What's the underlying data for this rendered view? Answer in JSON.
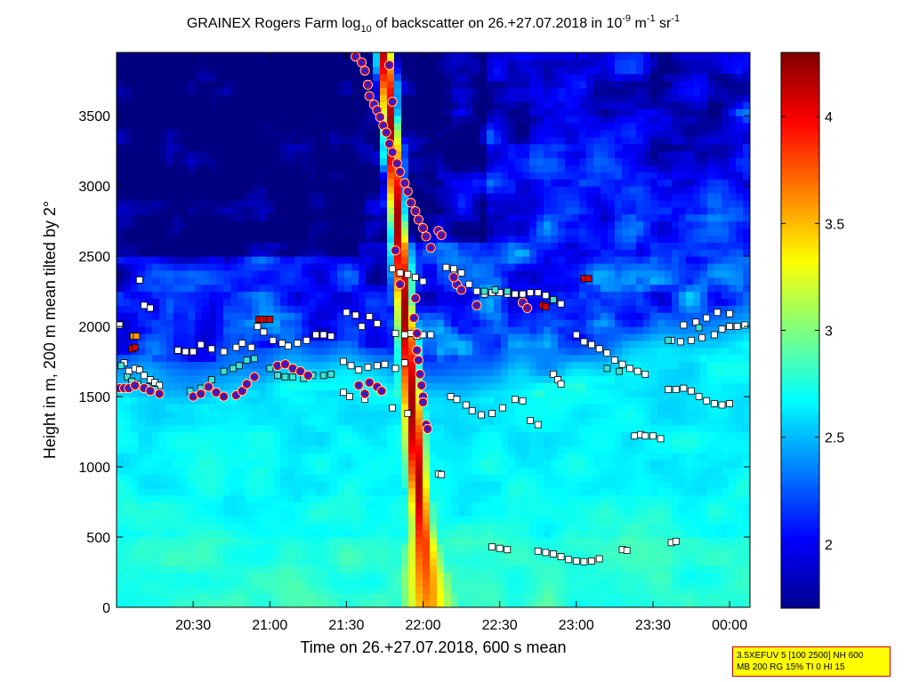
{
  "chart_data": {
    "type": "heatmap",
    "title": {
      "pre": "GRAINEX Rogers Farm log",
      "sub": "10",
      "mid": " of backscatter on 26.+27.07.2018 in 10",
      "sup1": "-9",
      "mid2": " m",
      "sup2": "-1",
      "mid3": " sr",
      "sup3": "-1"
    },
    "xlabel": "Time on 26.+27.07.2018, 600 s mean",
    "ylabel": "Height in m, 200 m mean tilted by 2°",
    "xlim_hours": [
      20.0,
      24.133
    ],
    "ylim": [
      0,
      3950
    ],
    "x_ticks": [
      {
        "h": 20.5,
        "label": "20:30"
      },
      {
        "h": 21.0,
        "label": "21:00"
      },
      {
        "h": 21.5,
        "label": "21:30"
      },
      {
        "h": 22.0,
        "label": "22:00"
      },
      {
        "h": 22.5,
        "label": "22:30"
      },
      {
        "h": 23.0,
        "label": "23:00"
      },
      {
        "h": 23.5,
        "label": "23:30"
      },
      {
        "h": 24.0,
        "label": "00:00"
      }
    ],
    "y_ticks": [
      0,
      500,
      1000,
      1500,
      2000,
      2500,
      3000,
      3500
    ],
    "colorbar": {
      "range": [
        1.7,
        4.3
      ],
      "ticks": [
        2,
        2.5,
        3,
        3.5,
        4
      ],
      "colormap": "jet"
    },
    "field": {
      "near_surface_log10": 2.75,
      "boundary_layer_top_m": [
        {
          "h": 20.0,
          "z": 1560
        },
        {
          "h": 20.5,
          "z": 1480
        },
        {
          "h": 21.0,
          "z": 1620
        },
        {
          "h": 21.5,
          "z": 1650
        },
        {
          "h": 22.0,
          "z": 1500
        },
        {
          "h": 22.5,
          "z": 1560
        },
        {
          "h": 23.0,
          "z": 1640
        },
        {
          "h": 23.5,
          "z": 1760
        },
        {
          "h": 24.0,
          "z": 1900
        },
        {
          "h": 24.133,
          "z": 1950
        }
      ],
      "plume": {
        "center_h_at_base": 22.03,
        "center_h_at_top": 21.75,
        "peak_log10": 4.2
      }
    },
    "series": [
      {
        "marker": "white-square",
        "points": [
          [
            20.02,
            2010
          ],
          [
            20.05,
            1740
          ],
          [
            20.08,
            1680
          ],
          [
            20.12,
            1700
          ],
          [
            20.15,
            1690
          ],
          [
            20.18,
            1650
          ],
          [
            20.22,
            1620
          ],
          [
            20.25,
            1600
          ],
          [
            20.28,
            1580
          ],
          [
            20.18,
            2150
          ],
          [
            20.22,
            2130
          ],
          [
            20.15,
            2330
          ],
          [
            20.4,
            1830
          ],
          [
            20.45,
            1820
          ],
          [
            20.5,
            1820
          ],
          [
            20.55,
            1870
          ],
          [
            20.62,
            1840
          ],
          [
            20.7,
            1820
          ],
          [
            20.78,
            1850
          ],
          [
            20.82,
            1880
          ],
          [
            20.88,
            1850
          ],
          [
            20.92,
            2000
          ],
          [
            20.96,
            1960
          ],
          [
            21.02,
            1900
          ],
          [
            21.08,
            1880
          ],
          [
            21.12,
            1860
          ],
          [
            21.18,
            1880
          ],
          [
            21.24,
            1900
          ],
          [
            21.3,
            1940
          ],
          [
            21.35,
            1940
          ],
          [
            21.4,
            1930
          ],
          [
            21.5,
            2100
          ],
          [
            21.56,
            2080
          ],
          [
            21.6,
            2000
          ],
          [
            21.65,
            2070
          ],
          [
            21.7,
            2020
          ],
          [
            21.48,
            1750
          ],
          [
            21.53,
            1720
          ],
          [
            21.58,
            1690
          ],
          [
            21.64,
            1710
          ],
          [
            21.7,
            1720
          ],
          [
            21.75,
            1730
          ],
          [
            21.82,
            1700
          ],
          [
            21.88,
            1740
          ],
          [
            21.48,
            1530
          ],
          [
            21.52,
            1500
          ],
          [
            21.62,
            1480
          ],
          [
            21.8,
            1420
          ],
          [
            21.9,
            1380
          ],
          [
            21.8,
            2410
          ],
          [
            21.85,
            2380
          ],
          [
            21.9,
            2370
          ],
          [
            21.95,
            2350
          ],
          [
            22.0,
            2320
          ],
          [
            21.82,
            1950
          ],
          [
            21.88,
            1940
          ],
          [
            21.92,
            1950
          ],
          [
            21.96,
            1930
          ],
          [
            22.0,
            1940
          ],
          [
            22.05,
            1940
          ],
          [
            22.15,
            2420
          ],
          [
            22.2,
            2410
          ],
          [
            22.25,
            2380
          ],
          [
            22.3,
            2300
          ],
          [
            22.35,
            2250
          ],
          [
            22.4,
            2230
          ],
          [
            22.45,
            2240
          ],
          [
            22.5,
            2240
          ],
          [
            22.55,
            2230
          ],
          [
            22.6,
            2230
          ],
          [
            22.65,
            2230
          ],
          [
            22.7,
            2240
          ],
          [
            22.75,
            2240
          ],
          [
            22.8,
            2220
          ],
          [
            22.85,
            2190
          ],
          [
            22.9,
            2160
          ],
          [
            22.1,
            950
          ],
          [
            22.12,
            945
          ],
          [
            22.18,
            1500
          ],
          [
            22.22,
            1480
          ],
          [
            22.28,
            1440
          ],
          [
            22.32,
            1400
          ],
          [
            22.38,
            1370
          ],
          [
            22.45,
            1380
          ],
          [
            22.52,
            1420
          ],
          [
            22.6,
            1480
          ],
          [
            22.65,
            1470
          ],
          [
            22.7,
            1330
          ],
          [
            22.75,
            1300
          ],
          [
            22.85,
            1660
          ],
          [
            22.88,
            1620
          ],
          [
            22.9,
            1590
          ],
          [
            23.0,
            1940
          ],
          [
            23.05,
            1890
          ],
          [
            23.1,
            1870
          ],
          [
            23.15,
            1840
          ],
          [
            23.2,
            1810
          ],
          [
            23.25,
            1760
          ],
          [
            23.3,
            1730
          ],
          [
            23.35,
            1700
          ],
          [
            23.4,
            1680
          ],
          [
            23.45,
            1660
          ],
          [
            23.38,
            1220
          ],
          [
            23.42,
            1230
          ],
          [
            23.45,
            1220
          ],
          [
            23.5,
            1220
          ],
          [
            23.55,
            1200
          ],
          [
            23.6,
            1550
          ],
          [
            23.65,
            1550
          ],
          [
            23.7,
            1560
          ],
          [
            23.75,
            1540
          ],
          [
            23.8,
            1500
          ],
          [
            23.85,
            1470
          ],
          [
            23.9,
            1450
          ],
          [
            23.95,
            1440
          ],
          [
            24.0,
            1450
          ],
          [
            23.62,
            1900
          ],
          [
            23.68,
            1890
          ],
          [
            23.75,
            1900
          ],
          [
            23.82,
            1920
          ],
          [
            23.9,
            1940
          ],
          [
            23.95,
            1980
          ],
          [
            24.0,
            2000
          ],
          [
            24.05,
            2000
          ],
          [
            24.1,
            2010
          ],
          [
            22.45,
            430
          ],
          [
            22.5,
            420
          ],
          [
            22.55,
            410
          ],
          [
            22.75,
            400
          ],
          [
            22.8,
            390
          ],
          [
            22.85,
            380
          ],
          [
            22.9,
            360
          ],
          [
            22.95,
            340
          ],
          [
            23.0,
            330
          ],
          [
            23.05,
            325
          ],
          [
            23.1,
            330
          ],
          [
            23.15,
            345
          ],
          [
            23.3,
            410
          ],
          [
            23.33,
            405
          ],
          [
            23.62,
            460
          ],
          [
            23.65,
            470
          ],
          [
            23.7,
            2010
          ],
          [
            23.78,
            2030
          ],
          [
            23.85,
            2060
          ],
          [
            23.92,
            2100
          ],
          [
            24.0,
            2090
          ]
        ]
      },
      {
        "marker": "cyan-square",
        "points": [
          [
            20.03,
            1720
          ],
          [
            20.07,
            1640
          ],
          [
            20.1,
            1610
          ],
          [
            20.14,
            1590
          ],
          [
            20.2,
            1570
          ],
          [
            20.25,
            1550
          ],
          [
            20.48,
            1540
          ],
          [
            20.55,
            1560
          ],
          [
            20.62,
            1620
          ],
          [
            20.7,
            1680
          ],
          [
            20.76,
            1700
          ],
          [
            20.8,
            1720
          ],
          [
            20.85,
            1760
          ],
          [
            20.9,
            1770
          ],
          [
            21.0,
            1700
          ],
          [
            21.05,
            1650
          ],
          [
            21.1,
            1640
          ],
          [
            21.15,
            1640
          ],
          [
            21.22,
            1630
          ],
          [
            21.28,
            1650
          ],
          [
            21.35,
            1650
          ],
          [
            21.4,
            1660
          ],
          [
            22.4,
            2250
          ],
          [
            22.47,
            2260
          ],
          [
            22.55,
            2250
          ],
          [
            22.85,
            2190
          ],
          [
            23.2,
            1700
          ],
          [
            23.28,
            1680
          ],
          [
            23.6,
            1900
          ],
          [
            23.8,
            1990
          ]
        ]
      },
      {
        "marker": "red-square",
        "points": [
          [
            20.1,
            1840
          ],
          [
            20.12,
            1850
          ],
          [
            20.93,
            2050
          ],
          [
            20.95,
            2050
          ],
          [
            20.98,
            2050
          ],
          [
            21.0,
            2050
          ],
          [
            22.78,
            2150
          ],
          [
            22.8,
            2140
          ],
          [
            23.05,
            2340
          ],
          [
            23.08,
            2340
          ]
        ]
      },
      {
        "marker": "orange-square",
        "points": [
          [
            20.11,
            1930
          ],
          [
            20.13,
            1930
          ]
        ]
      },
      {
        "marker": "blue-red-circle",
        "points": [
          [
            20.02,
            1560
          ],
          [
            20.05,
            1560
          ],
          [
            20.08,
            1560
          ],
          [
            20.12,
            1580
          ],
          [
            20.18,
            1560
          ],
          [
            20.22,
            1540
          ],
          [
            20.28,
            1520
          ],
          [
            20.5,
            1500
          ],
          [
            20.55,
            1520
          ],
          [
            20.6,
            1570
          ],
          [
            20.65,
            1530
          ],
          [
            20.7,
            1500
          ],
          [
            20.78,
            1510
          ],
          [
            20.82,
            1540
          ],
          [
            20.85,
            1590
          ],
          [
            20.9,
            1640
          ],
          [
            21.05,
            1720
          ],
          [
            21.1,
            1730
          ],
          [
            21.15,
            1700
          ],
          [
            21.2,
            1680
          ],
          [
            21.25,
            1650
          ],
          [
            21.58,
            1580
          ],
          [
            21.62,
            1520
          ],
          [
            21.65,
            1600
          ],
          [
            21.7,
            1570
          ],
          [
            21.73,
            1540
          ],
          [
            21.56,
            3920
          ],
          [
            21.6,
            3880
          ],
          [
            21.62,
            3820
          ],
          [
            21.64,
            3720
          ],
          [
            21.65,
            3640
          ],
          [
            21.68,
            3580
          ],
          [
            21.7,
            3540
          ],
          [
            21.72,
            3490
          ],
          [
            21.74,
            3430
          ],
          [
            21.76,
            3380
          ],
          [
            21.78,
            3300
          ],
          [
            21.8,
            3240
          ],
          [
            21.83,
            3160
          ],
          [
            21.85,
            3100
          ],
          [
            21.88,
            3020
          ],
          [
            21.9,
            2960
          ],
          [
            21.92,
            2880
          ],
          [
            21.95,
            2820
          ],
          [
            21.97,
            2760
          ],
          [
            22.0,
            2700
          ],
          [
            22.02,
            2640
          ],
          [
            22.05,
            2560
          ],
          [
            21.8,
            3600
          ],
          [
            21.78,
            3860
          ],
          [
            21.82,
            2540
          ],
          [
            21.85,
            2300
          ],
          [
            21.95,
            2200
          ],
          [
            21.94,
            2060
          ],
          [
            21.96,
            1950
          ],
          [
            21.96,
            1830
          ],
          [
            21.97,
            1760
          ],
          [
            21.98,
            1660
          ],
          [
            21.99,
            1580
          ],
          [
            22.0,
            1500
          ],
          [
            22.0,
            1460
          ],
          [
            22.02,
            1300
          ],
          [
            22.03,
            1270
          ],
          [
            22.1,
            2680
          ],
          [
            22.12,
            2650
          ],
          [
            22.22,
            2300
          ],
          [
            22.25,
            2260
          ],
          [
            22.35,
            2150
          ],
          [
            22.65,
            2170
          ],
          [
            22.68,
            2130
          ],
          [
            22.2,
            2350
          ]
        ]
      }
    ]
  },
  "info_box": {
    "line1": "3.5XEFUV 5 [100 2500] NH 600",
    "line2": "MB 200 RG 15% TI 0 HI 15"
  }
}
